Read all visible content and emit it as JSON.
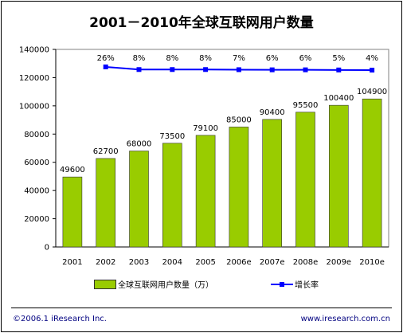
{
  "title": "2001－2010年全球互联网用户数量",
  "chart_data": {
    "type": "bar",
    "categories": [
      "2001",
      "2002",
      "2003",
      "2004",
      "2005",
      "2006e",
      "2007e",
      "2008e",
      "2009e",
      "2010e"
    ],
    "series": [
      {
        "name": "全球互联网用户数量（万）",
        "type": "bar",
        "values": [
          49600,
          62700,
          68000,
          73500,
          79100,
          85000,
          90400,
          95500,
          100400,
          104900
        ],
        "labels": [
          "49600",
          "62700",
          "68000",
          "73500",
          "79100",
          "85000",
          "90400",
          "95500",
          "100400",
          "104900"
        ]
      },
      {
        "name": "增长率",
        "type": "line",
        "values": [
          null,
          26,
          8,
          8,
          8,
          7,
          6,
          6,
          5,
          4
        ],
        "labels": [
          "",
          "26%",
          "8%",
          "8%",
          "8%",
          "7%",
          "6%",
          "6%",
          "5%",
          "4%"
        ]
      }
    ],
    "ylim": [
      0,
      140000
    ],
    "yticks": [
      "0",
      "20000",
      "40000",
      "60000",
      "80000",
      "100000",
      "120000",
      "140000"
    ],
    "xlabel": "",
    "ylabel": "",
    "grid": false,
    "legend": "bottom",
    "colors": {
      "bar": "#99cc00",
      "line": "#0000ff",
      "plot_bg": "#ffffff"
    }
  },
  "footer": {
    "left": "©2006.1  iResearch Inc.",
    "right": "www.iresearch.com.cn"
  }
}
